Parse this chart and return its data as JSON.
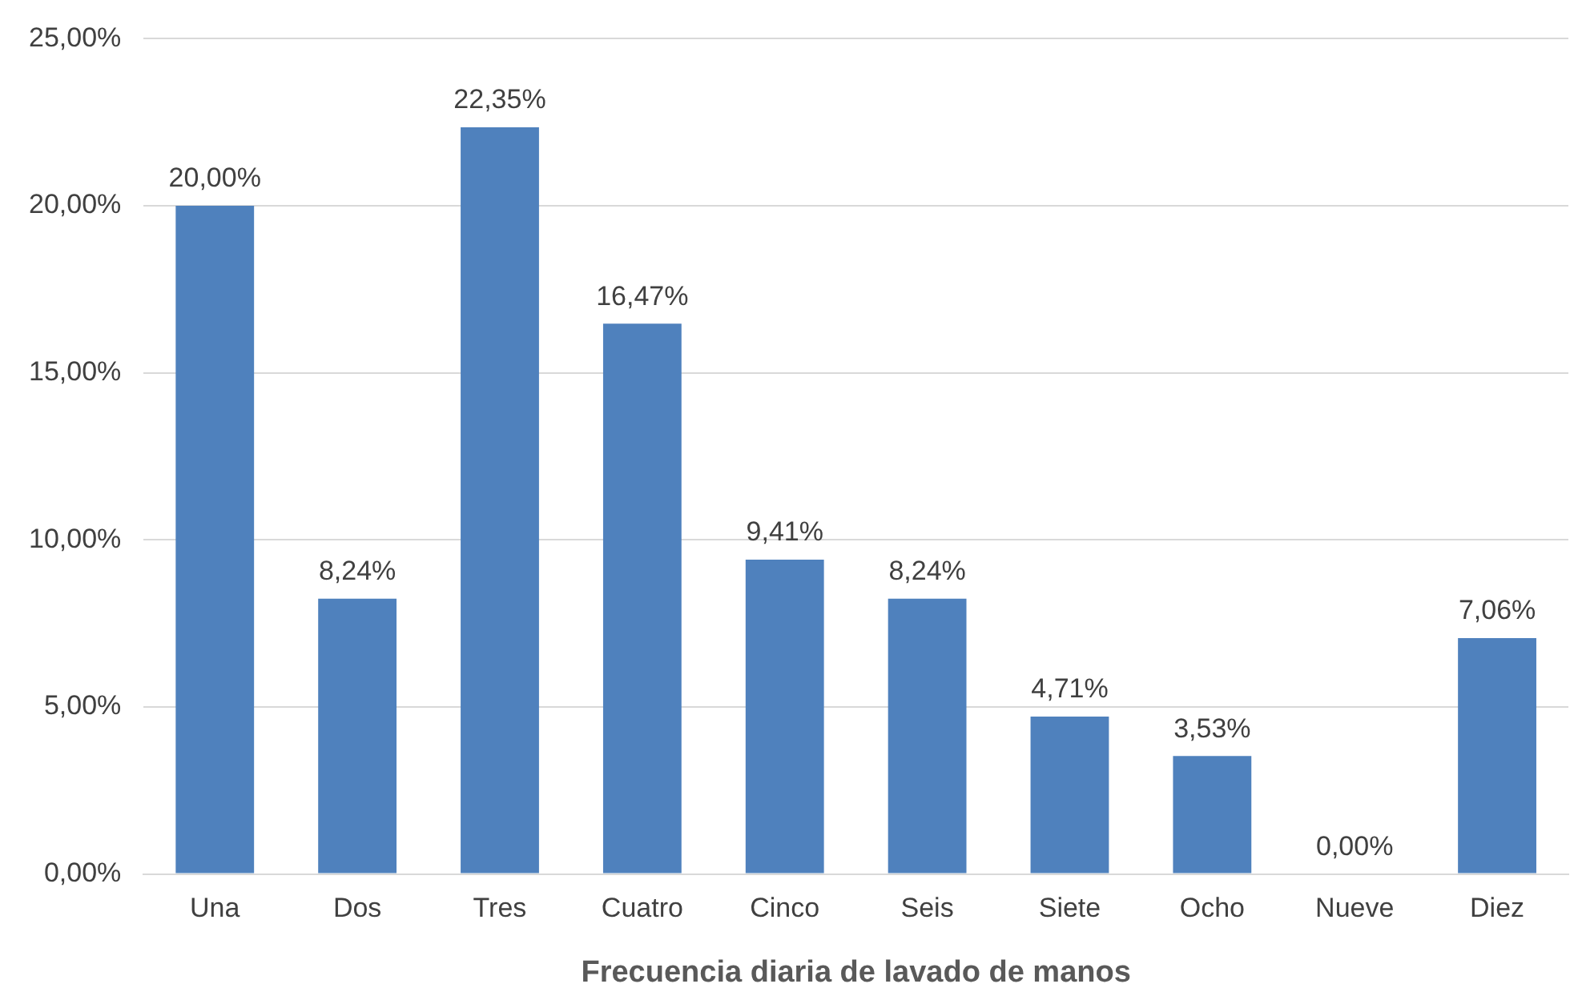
{
  "chart_data": {
    "type": "bar",
    "xlabel": "Frecuencia diaria de lavado de manos",
    "categories": [
      "Una",
      "Dos",
      "Tres",
      "Cuatro",
      "Cinco",
      "Seis",
      "Siete",
      "Ocho",
      "Nueve",
      "Diez"
    ],
    "values": [
      20,
      8.24,
      22.35,
      16.47,
      9.41,
      8.24,
      4.71,
      3.53,
      0,
      7.06
    ],
    "value_labels": [
      "20,00%",
      "8,24%",
      "22,35%",
      "16,47%",
      "9,41%",
      "8,24%",
      "4,71%",
      "3,53%",
      "0,00%",
      "7,06%"
    ],
    "color": "#4f81bd",
    "ylim": [
      0,
      25
    ],
    "yticks": [
      {
        "value": 0,
        "label": "0,00%"
      },
      {
        "value": 5,
        "label": "5,00%"
      },
      {
        "value": 10,
        "label": "10,00%"
      },
      {
        "value": 15,
        "label": "15,00%"
      },
      {
        "value": 20,
        "label": "20,00%"
      },
      {
        "value": 25,
        "label": "25,00%"
      }
    ],
    "grid": "y",
    "legend": false
  }
}
